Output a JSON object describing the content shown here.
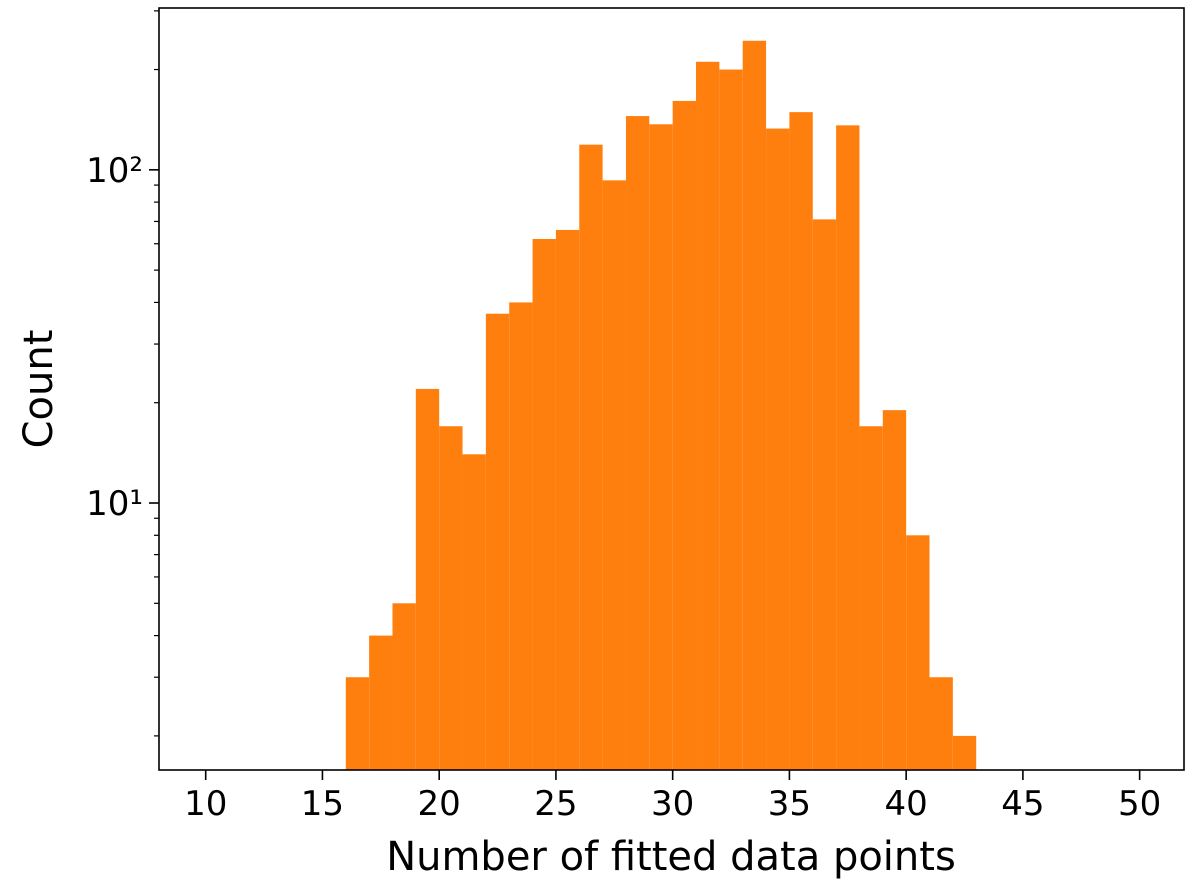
{
  "chart_data": {
    "type": "histogram",
    "x_label": "Number of fitted data points",
    "y_label": "Count",
    "bins": [
      16,
      17,
      18,
      19,
      20,
      21,
      22,
      23,
      24,
      25,
      26,
      27,
      28,
      29,
      30,
      31,
      32,
      33,
      34,
      35,
      36,
      37,
      38,
      39,
      40,
      41,
      42,
      43
    ],
    "values": [
      3,
      4,
      5,
      22,
      17,
      14,
      37,
      40,
      62,
      66,
      119,
      93,
      145,
      137,
      161,
      211,
      200,
      244,
      133,
      149,
      71,
      136,
      17,
      19,
      8,
      3,
      2
    ],
    "color": "#ff7f0e",
    "xlim": [
      8,
      51.9
    ],
    "xticks": [
      10,
      15,
      20,
      25,
      30,
      35,
      40,
      45,
      50
    ],
    "ylim": [
      1.58,
      306
    ],
    "log_y": true,
    "yticks": [
      {
        "value": 10,
        "label": "10¹"
      },
      {
        "value": 100,
        "label": "10²"
      }
    ],
    "yminorticks": [
      2,
      3,
      4,
      5,
      6,
      7,
      8,
      9,
      20,
      30,
      40,
      50,
      60,
      70,
      80,
      90,
      200,
      300
    ],
    "grid": false
  }
}
